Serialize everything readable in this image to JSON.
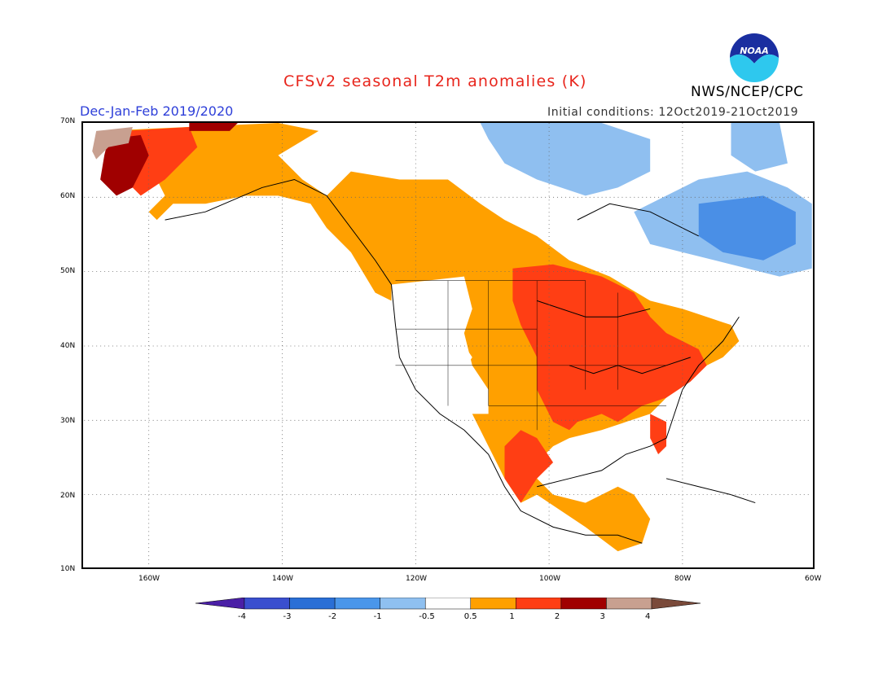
{
  "header": {
    "title": "CFSv2 seasonal T2m anomalies (K)",
    "season": "Dec-Jan-Feb 2019/2020",
    "initial_conditions": "Initial conditions: 12Oct2019-21Oct2019",
    "agency": "NWS/NCEP/CPC",
    "logo_text": "NOAA"
  },
  "colors": {
    "title": "#e8251c",
    "season": "#2e3fd9",
    "cool3": "#1f5fcc",
    "cool2": "#4a8fe6",
    "cool1": "#8fbff0",
    "neutral": "#ffffff",
    "warm1": "#ffa000",
    "warm2": "#ff3e14",
    "warm3": "#a00000",
    "warm4": "#c8a090",
    "warm5": "#7a4a3a"
  },
  "map": {
    "lat_labels": [
      "70N",
      "60N",
      "50N",
      "40N",
      "30N",
      "20N",
      "10N"
    ],
    "lon_labels": [
      "160W",
      "140W",
      "120W",
      "100W",
      "80W",
      "60W"
    ]
  },
  "legend": {
    "labels": [
      "-4",
      "-3",
      "-2",
      "-1",
      "-0.5",
      "0.5",
      "1",
      "2",
      "3",
      "4"
    ],
    "colors": [
      "#4a1fa6",
      "#3a4fcf",
      "#2a6fd6",
      "#4a96ea",
      "#8fc0f0",
      "#ffffff",
      "#ffa000",
      "#ff3e14",
      "#a00000",
      "#c8a090",
      "#7a4a3a"
    ]
  }
}
